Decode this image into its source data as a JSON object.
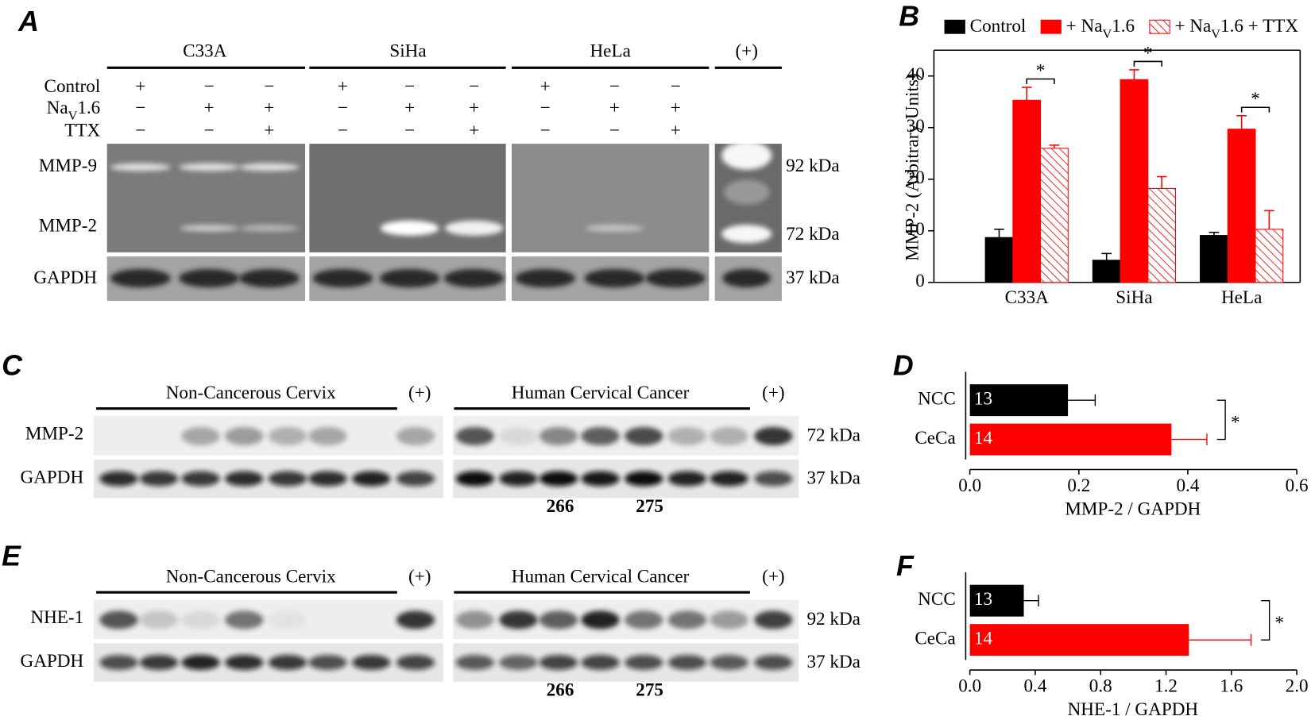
{
  "figure_panels": [
    "A",
    "B",
    "C",
    "D",
    "E",
    "F"
  ],
  "blot_a": {
    "cell_lines": [
      "C33A",
      "SiHa",
      "HeLa",
      "(+)"
    ],
    "conditions": [
      {
        "label": "Control",
        "signs": [
          "+",
          "−",
          "−",
          "+",
          "−",
          "−",
          "+",
          "−",
          "−"
        ]
      },
      {
        "label": "NaV1.6",
        "signs": [
          "−",
          "+",
          "+",
          "−",
          "+",
          "+",
          "−",
          "+",
          "+"
        ]
      },
      {
        "label": "TTX",
        "signs": [
          "−",
          "−",
          "+",
          "−",
          "−",
          "+",
          "−",
          "−",
          "+"
        ]
      }
    ],
    "rows": [
      "MMP-9",
      "MMP-2",
      "GAPDH"
    ],
    "sizes": [
      "92 kDa",
      "72 kDa",
      "37 kDa"
    ]
  },
  "blot_c": {
    "groups": [
      "Non-Cancerous Cervix",
      "(+)",
      "Human Cervical Cancer",
      "(+)"
    ],
    "rows": [
      "MMP-2",
      "GAPDH"
    ],
    "sizes": [
      "72 kDa",
      "37 kDa"
    ],
    "lane_numbers": [
      "266",
      "275"
    ]
  },
  "blot_e": {
    "groups": [
      "Non-Cancerous Cervix",
      "(+)",
      "Human Cervical Cancer",
      "(+)"
    ],
    "rows": [
      "NHE-1",
      "GAPDH"
    ],
    "sizes": [
      "92 kDa",
      "37 kDa"
    ],
    "lane_numbers": [
      "266",
      "275"
    ]
  },
  "chart_data": [
    {
      "type": "bar",
      "ylabel": "MMP-2 (Arbitrary Units)",
      "categories": [
        "C33A",
        "SiHa",
        "HeLa"
      ],
      "series": [
        {
          "name": "Control",
          "color": "#000000",
          "values": [
            8.7,
            4.3,
            9.1
          ],
          "errors": [
            1.6,
            1.3,
            0.6
          ]
        },
        {
          "name": "+ NaV1.6",
          "color": "#ff0000",
          "values": [
            35.3,
            39.3,
            29.7
          ],
          "errors": [
            2.5,
            1.9,
            2.6
          ]
        },
        {
          "name": "+ NaV1.6 + TTX",
          "color": "#ff0000",
          "hatch": true,
          "values": [
            26,
            18.2,
            10.3
          ],
          "errors": [
            0.6,
            2.3,
            3.6
          ]
        }
      ],
      "ylim": [
        0,
        45
      ],
      "yticks": [
        0,
        10,
        20,
        30,
        40
      ],
      "annotations": [
        "*",
        "*",
        "*"
      ]
    },
    {
      "type": "hbar",
      "xlabel": "MMP-2 / GAPDH",
      "categories": [
        "NCC",
        "CeCa"
      ],
      "values": [
        0.18,
        0.37
      ],
      "errors": [
        0.05,
        0.065
      ],
      "colors": [
        "#000000",
        "#ff0000"
      ],
      "sample_sizes": [
        "13",
        "14"
      ],
      "xlim": [
        0,
        0.6
      ],
      "xticks": [
        {
          "value": 0,
          "label": "0.0"
        },
        0.2,
        0.4,
        0.6
      ],
      "annotation": "*"
    },
    {
      "type": "hbar",
      "xlabel": "NHE-1 / GAPDH",
      "categories": [
        "NCC",
        "CeCa"
      ],
      "values": [
        0.33,
        1.34
      ],
      "errors": [
        0.09,
        0.38
      ],
      "colors": [
        "#000000",
        "#ff0000"
      ],
      "sample_sizes": [
        "13",
        "14"
      ],
      "xlim": [
        0,
        2.0
      ],
      "xticks": [
        {
          "value": 0,
          "label": "0.0"
        },
        0.4,
        0.8,
        1.2,
        1.6,
        {
          "value": 2,
          "label": "2.0"
        }
      ],
      "annotation": "*"
    }
  ]
}
